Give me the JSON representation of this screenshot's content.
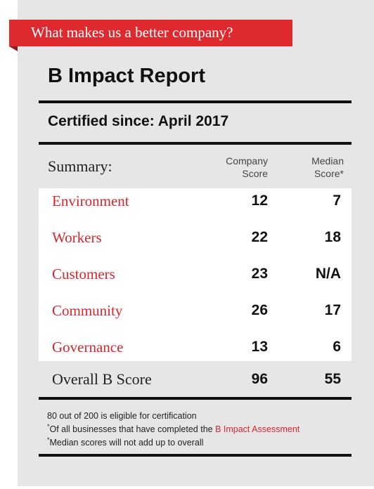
{
  "ribbon": {
    "text": "What makes us a better company?"
  },
  "report": {
    "title": "B Impact Report",
    "certified": "Certified since: April 2017"
  },
  "summary": {
    "label": "Summary:",
    "company_header_1": "Company",
    "company_header_2": "Score",
    "median_header_1": "Median",
    "median_header_2": "Score*"
  },
  "rows": [
    {
      "category": "Environment",
      "company": "12",
      "median": "7"
    },
    {
      "category": "Workers",
      "company": "22",
      "median": "18"
    },
    {
      "category": "Customers",
      "company": "23",
      "median": "N/A"
    },
    {
      "category": "Community",
      "company": "26",
      "median": "17"
    },
    {
      "category": "Governance",
      "company": "13",
      "median": "6"
    }
  ],
  "overall": {
    "label": "Overall B Score",
    "company": "96",
    "median": "55"
  },
  "notes": {
    "line1": "80 out of 200 is eligible for certification",
    "line2_mark": "*",
    "line2_text": "Of all businesses that have completed the ",
    "line2_link": "B Impact Assessment",
    "line3_mark": "*",
    "line3_text": "Median scores will not add up to overall"
  },
  "colors": {
    "accent_red": "#de2a2f",
    "background_gray": "#e6e6e6",
    "text_dark": "#111111"
  }
}
